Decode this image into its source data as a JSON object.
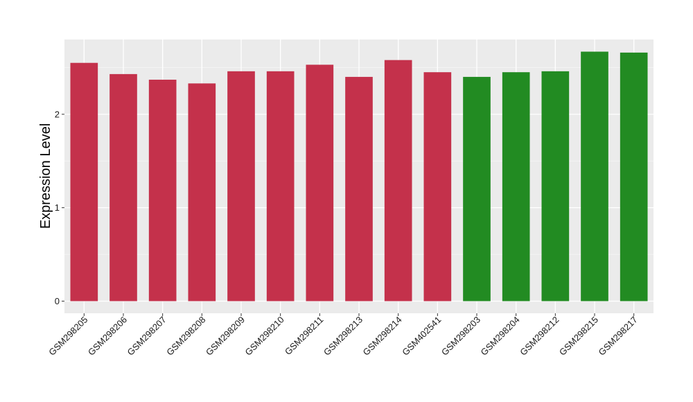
{
  "chart_data": {
    "type": "bar",
    "title": "",
    "xlabel": "",
    "ylabel": "Expression Level",
    "categories": [
      "GSM298205",
      "GSM298206",
      "GSM298207",
      "GSM298208",
      "GSM298209",
      "GSM298210",
      "GSM298211",
      "GSM298213",
      "GSM298214",
      "GSM402541",
      "GSM298203",
      "GSM298204",
      "GSM298212",
      "GSM298215",
      "GSM298217"
    ],
    "values": [
      2.55,
      2.43,
      2.37,
      2.33,
      2.46,
      2.46,
      2.53,
      2.4,
      2.58,
      2.45,
      2.4,
      2.45,
      2.46,
      2.67,
      2.66
    ],
    "groups": [
      0,
      0,
      0,
      0,
      0,
      0,
      0,
      0,
      0,
      0,
      1,
      1,
      1,
      1,
      1
    ],
    "group_colors": [
      "#c4314b",
      "#228b22"
    ],
    "ylim": [
      -0.13,
      2.8
    ],
    "yticks": [
      0,
      1,
      2
    ],
    "grid": true,
    "panel_background": "#ebebeb",
    "legend": "none"
  }
}
